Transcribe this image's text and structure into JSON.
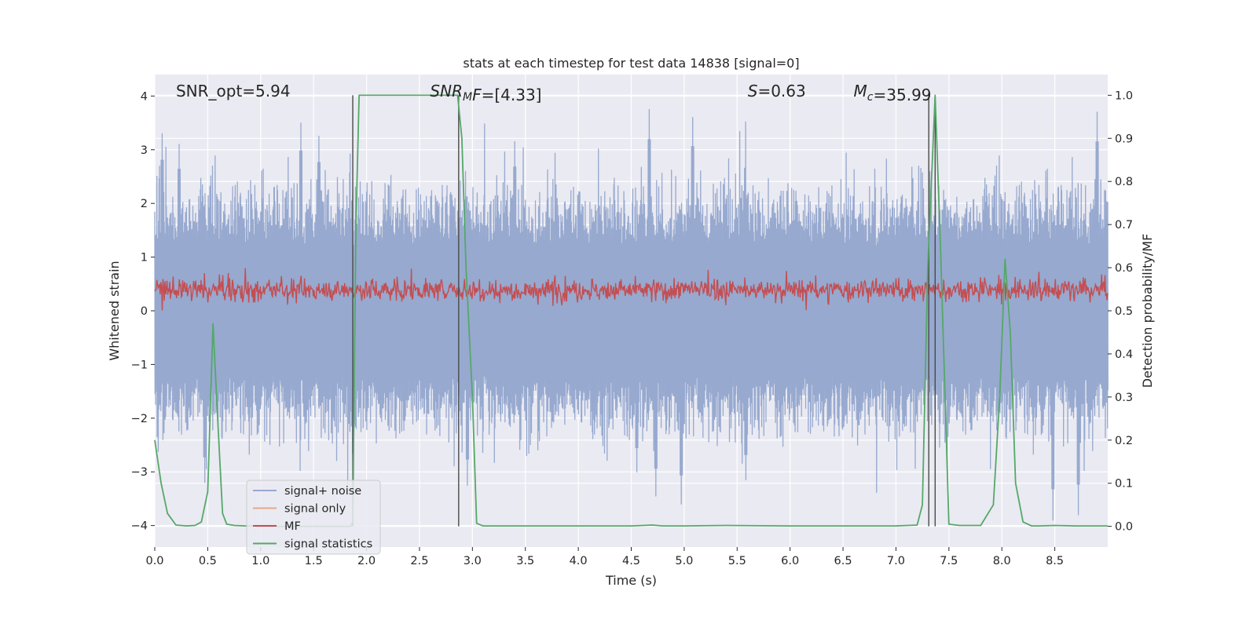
{
  "chart_data": {
    "type": "line",
    "title": "stats at each timestep for test data 14838 [signal=0]",
    "xlabel": "Time (s)",
    "ylabel": "Whitened strain",
    "y2label": "Detection probability/MF",
    "xlim": [
      0.0,
      9.0
    ],
    "ylim": [
      -4.4,
      4.4
    ],
    "y2lim": [
      -0.048,
      1.048
    ],
    "xticks": [
      "0.0",
      "0.5",
      "1.0",
      "1.5",
      "2.0",
      "2.5",
      "3.0",
      "3.5",
      "4.0",
      "4.5",
      "5.0",
      "5.5",
      "6.0",
      "6.5",
      "7.0",
      "7.5",
      "8.0",
      "8.5"
    ],
    "yticks": [
      "4",
      "3",
      "2",
      "1",
      "0",
      "−1",
      "−2",
      "−3",
      "−4"
    ],
    "y2ticks": [
      "1.0",
      "0.9",
      "0.8",
      "0.7",
      "0.6",
      "0.5",
      "0.4",
      "0.3",
      "0.2",
      "0.1",
      "0.0"
    ],
    "grid": true,
    "background": "#eaeaf2",
    "legend_position": "lower-left",
    "annotations": [
      {
        "label": "SNR_opt=5.94",
        "x": 0.2,
        "y": 4.05
      },
      {
        "label": "SNR",
        "sub": "M",
        "rest": "F=[4.33]",
        "italic": true,
        "x": 2.6,
        "y": 4.05
      },
      {
        "label": "S",
        "rest": "=0.63",
        "italic": true,
        "x": 5.6,
        "y": 4.05
      },
      {
        "label": "M",
        "sub": "c",
        "rest": "=35.99",
        "italic": true,
        "x": 6.6,
        "y": 4.05
      }
    ],
    "series": [
      {
        "name": "signal+ noise",
        "color": "#97a9cf",
        "axis": "left",
        "description": "whitened noise band roughly between -2.5 and 3.5"
      },
      {
        "name": "signal only",
        "color": "#e8a58a",
        "axis": "left",
        "values": []
      },
      {
        "name": "MF",
        "color": "#c44e52",
        "axis": "right",
        "description": "matched filter output between about 0.5 and 0.6"
      },
      {
        "name": "signal statistics",
        "color": "#55a868",
        "axis": "right",
        "x": [
          0.0,
          0.06,
          0.12,
          0.2,
          0.3,
          0.38,
          0.44,
          0.5,
          0.55,
          0.6,
          0.64,
          0.68,
          0.75,
          0.85,
          1.0,
          1.2,
          1.4,
          1.6,
          1.78,
          1.85,
          1.87,
          1.88,
          1.9,
          1.93,
          1.95,
          2.2,
          2.5,
          2.8,
          2.86,
          2.9,
          2.94,
          3.0,
          3.04,
          3.1,
          3.5,
          4.0,
          4.5,
          4.7,
          4.8,
          5.0,
          5.4,
          6.0,
          6.5,
          7.0,
          7.2,
          7.25,
          7.3,
          7.37,
          7.42,
          7.47,
          7.5,
          7.6,
          7.8,
          7.92,
          7.98,
          8.03,
          8.08,
          8.13,
          8.2,
          8.28,
          8.35,
          8.5,
          8.7,
          9.0
        ],
        "values": [
          0.2,
          0.1,
          0.03,
          0.003,
          0.001,
          0.002,
          0.01,
          0.08,
          0.47,
          0.22,
          0.03,
          0.005,
          0.002,
          0.001,
          0.0,
          0.0,
          0.0,
          0.0,
          0.0,
          0.0,
          0.01,
          0.25,
          0.7,
          1.0,
          1.0,
          1.0,
          1.0,
          1.0,
          1.0,
          0.9,
          0.6,
          0.3,
          0.007,
          0.001,
          0.001,
          0.001,
          0.001,
          0.003,
          0.001,
          0.001,
          0.002,
          0.001,
          0.001,
          0.001,
          0.003,
          0.05,
          0.6,
          1.0,
          0.65,
          0.25,
          0.005,
          0.002,
          0.002,
          0.05,
          0.3,
          0.62,
          0.45,
          0.1,
          0.01,
          0.001,
          0.001,
          0.002,
          0.001,
          0.001
        ]
      }
    ],
    "vlines": [
      {
        "x": 1.87,
        "ymin": 0.0,
        "ymax": 1.0
      },
      {
        "x": 2.87,
        "ymin": 0.0,
        "ymax": 1.0
      },
      {
        "x": 7.31,
        "ymin": 0.0,
        "ymax": 1.0
      },
      {
        "x": 7.37,
        "ymin": 0.0,
        "ymax": 1.0
      }
    ],
    "noise_envelope_upper_peaks": [
      {
        "x": 0.07,
        "y": 3.3
      },
      {
        "x": 0.23,
        "y": 3.1
      },
      {
        "x": 1.38,
        "y": 3.5
      },
      {
        "x": 1.55,
        "y": 3.25
      },
      {
        "x": 3.4,
        "y": 3.15
      },
      {
        "x": 4.67,
        "y": 3.75
      },
      {
        "x": 5.08,
        "y": 3.6
      },
      {
        "x": 8.9,
        "y": 3.7
      }
    ],
    "noise_envelope_lower_peaks": [
      {
        "x": 0.47,
        "y": -3.2
      },
      {
        "x": 2.95,
        "y": -3.25
      },
      {
        "x": 4.55,
        "y": -3.0
      },
      {
        "x": 4.73,
        "y": -3.45
      },
      {
        "x": 4.97,
        "y": -3.6
      },
      {
        "x": 5.58,
        "y": -3.15
      },
      {
        "x": 8.48,
        "y": -3.9
      },
      {
        "x": 8.72,
        "y": -3.8
      }
    ]
  }
}
